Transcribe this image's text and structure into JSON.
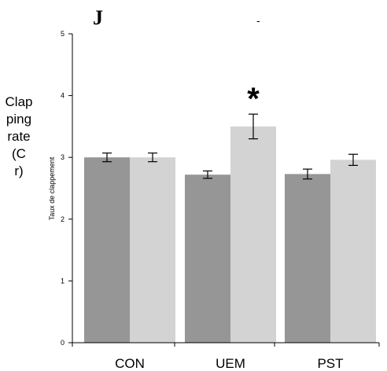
{
  "panel_letter": "J",
  "dash_mark": "-",
  "side_label_lines": [
    "Clap",
    "ping",
    "rate",
    "(C",
    "r)"
  ],
  "significance_marker": "*",
  "colors": {
    "dark_bar": "#969696",
    "light_bar": "#d3d3d3",
    "axis": "#000000"
  },
  "chart_data": {
    "type": "bar",
    "categories": [
      "CON",
      "UEM",
      "PST"
    ],
    "series": [
      {
        "values": [
          3.0,
          2.72,
          2.73
        ],
        "errors": [
          0.07,
          0.06,
          0.08
        ],
        "color": "#969696"
      },
      {
        "values": [
          3.0,
          3.5,
          2.96
        ],
        "errors": [
          0.07,
          0.2,
          0.09
        ],
        "color": "#d3d3d3"
      }
    ],
    "ylabel": "Taux de clappement",
    "xlabel": "",
    "ylim": [
      0,
      5
    ],
    "yticks": [
      0,
      1,
      2,
      3,
      4,
      5
    ],
    "grid": false,
    "legend": "none",
    "annotations": [
      {
        "text": "*",
        "category": "UEM",
        "series": 1
      }
    ]
  }
}
